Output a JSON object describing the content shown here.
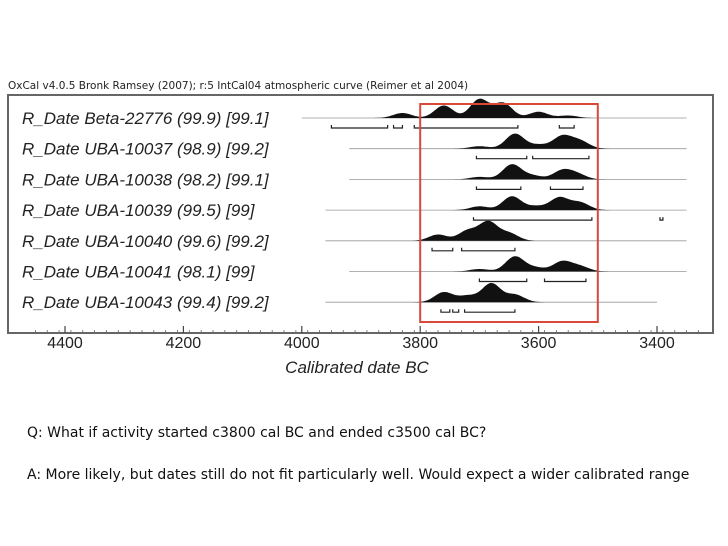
{
  "chart_data": {
    "type": "multiple-calibrated-probability-distributions",
    "header": "OxCal v4.0.5 Bronk Ramsey (2007); r:5 IntCal04 atmospheric curve (Reimer et al 2004)",
    "xlabel": "Calibrated date BC",
    "x_ticks": [
      4400,
      4200,
      4000,
      3800,
      3600,
      3400
    ],
    "xlim": [
      4450,
      3320
    ],
    "highlight_range": [
      3800,
      3500
    ],
    "highlight_color": "#d9493a",
    "series": [
      {
        "name": "R_Date Beta-22776 (99.9) [99.1]",
        "line_range": [
          4000,
          3350
        ],
        "peaks": [
          [
            3830,
            4
          ],
          [
            3760,
            10
          ],
          [
            3700,
            15
          ],
          [
            3660,
            12
          ],
          [
            3600,
            5
          ],
          [
            3550,
            2
          ]
        ],
        "ranges": [
          [
            3950,
            3855
          ],
          [
            3845,
            3830
          ],
          [
            3810,
            3635
          ],
          [
            3565,
            3540
          ]
        ]
      },
      {
        "name": "R_Date UBA-10037 (98.9) [99.2]",
        "line_range": [
          3920,
          3350
        ],
        "peaks": [
          [
            3700,
            2
          ],
          [
            3640,
            12
          ],
          [
            3600,
            3
          ],
          [
            3560,
            10
          ],
          [
            3530,
            6
          ]
        ],
        "ranges": [
          [
            3705,
            3620
          ],
          [
            3610,
            3515
          ]
        ]
      },
      {
        "name": "R_Date UBA-10038 (98.2) [99.1]",
        "line_range": [
          3920,
          3350
        ],
        "peaks": [
          [
            3700,
            2
          ],
          [
            3645,
            12
          ],
          [
            3610,
            3
          ],
          [
            3560,
            7
          ],
          [
            3535,
            4
          ]
        ],
        "ranges": [
          [
            3705,
            3630
          ],
          [
            3580,
            3525
          ]
        ]
      },
      {
        "name": "R_Date UBA-10039 (99.5) [99]",
        "line_range": [
          3960,
          3350
        ],
        "peaks": [
          [
            3700,
            3
          ],
          [
            3645,
            11
          ],
          [
            3605,
            3
          ],
          [
            3565,
            10
          ],
          [
            3530,
            6
          ]
        ],
        "ranges": [
          [
            3710,
            3510
          ],
          [
            3395,
            3390
          ]
        ]
      },
      {
        "name": "R_Date UBA-10040 (99.6) [99.2]",
        "line_range": [
          3960,
          3350
        ],
        "peaks": [
          [
            3770,
            5
          ],
          [
            3720,
            8
          ],
          [
            3685,
            15
          ],
          [
            3650,
            6
          ]
        ],
        "ranges": [
          [
            3780,
            3745
          ],
          [
            3730,
            3640
          ]
        ]
      },
      {
        "name": "R_Date UBA-10041 (98.1) [99]",
        "line_range": [
          3920,
          3350
        ],
        "peaks": [
          [
            3700,
            2
          ],
          [
            3640,
            12
          ],
          [
            3605,
            3
          ],
          [
            3560,
            8
          ],
          [
            3530,
            4
          ]
        ],
        "ranges": [
          [
            3700,
            3620
          ],
          [
            3590,
            3520
          ]
        ]
      },
      {
        "name": "R_Date UBA-10043 (99.4) [99.2]",
        "line_range": [
          3960,
          3400
        ],
        "peaks": [
          [
            3760,
            8
          ],
          [
            3720,
            5
          ],
          [
            3680,
            15
          ],
          [
            3640,
            6
          ]
        ],
        "ranges": [
          [
            3765,
            3750
          ],
          [
            3745,
            3735
          ],
          [
            3725,
            3640
          ]
        ]
      }
    ]
  },
  "qa": {
    "question": "Q: What if activity started c3800 cal BC and ended c3500 cal BC?",
    "answer": "A: More likely, but dates still do not fit particularly well. Would expect a wider calibrated range"
  }
}
